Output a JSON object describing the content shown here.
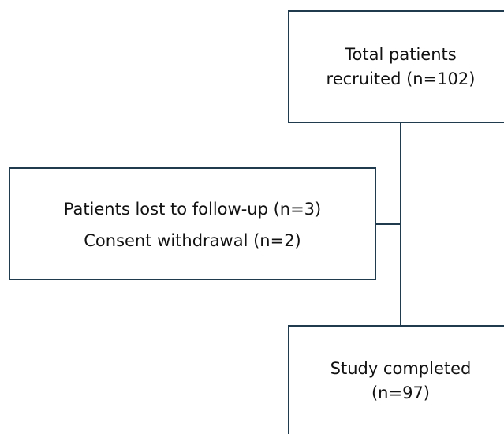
{
  "nodes": [
    {
      "label": [
        "Total patients",
        "recruited (n=102)"
      ]
    },
    {
      "label": [
        "Patients lost to follow-up (n=3)",
        "Consent withdrawal (n=2)"
      ]
    },
    {
      "label": [
        "Study completed",
        "(n=97)"
      ]
    }
  ]
}
